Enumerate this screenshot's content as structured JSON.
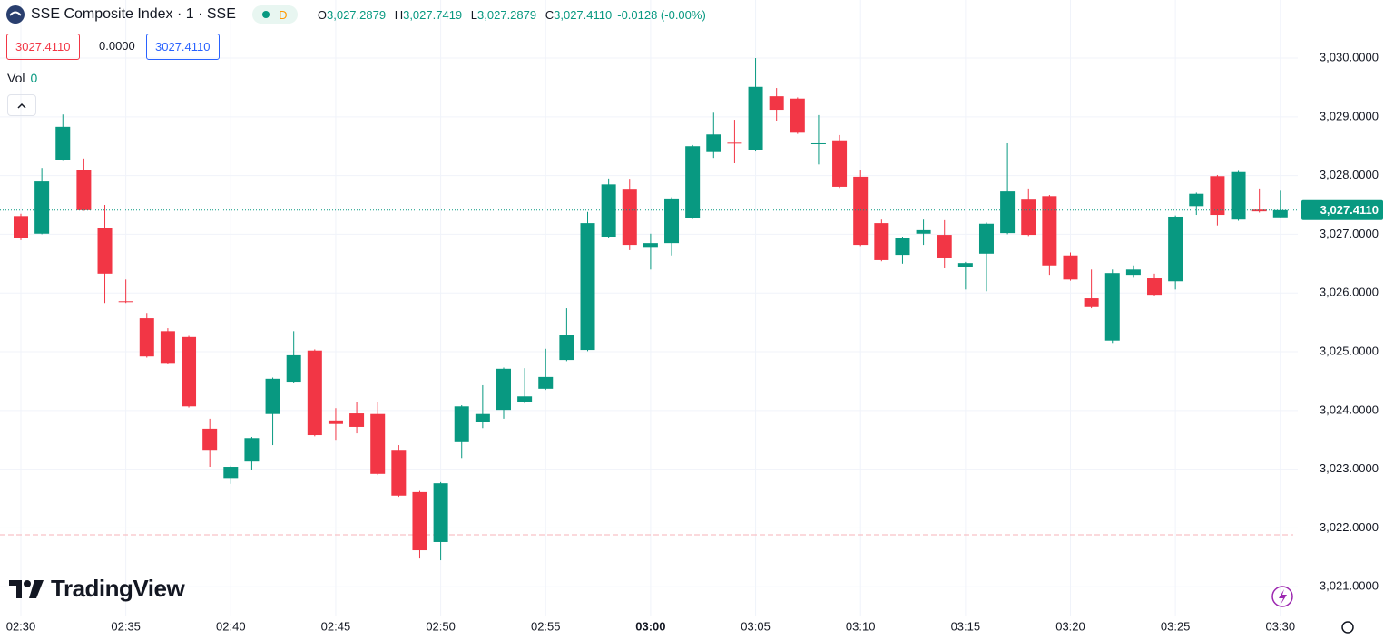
{
  "header": {
    "symbol": "SSE Composite Index · 1 · SSE",
    "badge": "D",
    "ohlc": [
      {
        "label": "O",
        "value": "3,027.2879"
      },
      {
        "label": "H",
        "value": "3,027.7419"
      },
      {
        "label": "L",
        "value": "3,027.2879"
      },
      {
        "label": "C",
        "value": "3,027.4110"
      }
    ],
    "change": "-0.0128 (-0.00%)"
  },
  "inputs": [
    "3027.4110",
    "0.0000",
    "3027.4110"
  ],
  "volume": {
    "label": "Vol",
    "value": "0"
  },
  "branding": "TradingView",
  "chart_data": {
    "type": "candlestick",
    "categories": [
      "02:30",
      null,
      null,
      null,
      null,
      "02:35",
      null,
      null,
      null,
      null,
      "02:40",
      null,
      null,
      null,
      null,
      "02:45",
      null,
      null,
      null,
      null,
      "02:50",
      null,
      null,
      null,
      null,
      "02:55",
      null,
      null,
      null,
      null,
      "03:00",
      null,
      null,
      null,
      null,
      "03:05",
      null,
      null,
      null,
      null,
      "03:10",
      null,
      null,
      null,
      null,
      "03:15",
      null,
      null,
      null,
      null,
      "03:20",
      null,
      null,
      null,
      null,
      "03:25",
      null,
      null,
      null,
      null,
      "03:30"
    ],
    "open": [
      3027.31,
      3027.01,
      3028.26,
      3028.1,
      3027.11,
      3025.86,
      3025.57,
      3025.35,
      3025.25,
      3023.69,
      3022.85,
      3023.13,
      3023.94,
      3024.49,
      3025.02,
      3023.83,
      3023.95,
      3023.94,
      3023.33,
      3022.61,
      3021.76,
      3023.46,
      3023.81,
      3024.01,
      3024.14,
      3024.37,
      3024.86,
      3025.03,
      3026.96,
      3027.76,
      3026.77,
      3026.85,
      3027.28,
      3028.4,
      3028.56,
      3028.43,
      3029.35,
      3029.31,
      3028.54,
      3028.6,
      3027.98,
      3027.19,
      3026.65,
      3027.01,
      3026.99,
      3026.45,
      3026.67,
      3027.02,
      3027.59,
      3027.65,
      3026.64,
      3025.91,
      3025.19,
      3026.31,
      3026.25,
      3026.2,
      3027.48,
      3027.99,
      3027.25,
      3027.42,
      3027.2879
    ],
    "high": [
      3027.35,
      3028.13,
      3029.04,
      3028.29,
      3027.5,
      3026.23,
      3025.66,
      3025.4,
      3025.27,
      3023.86,
      3023.06,
      3023.55,
      3024.56,
      3025.35,
      3025.04,
      3024.04,
      3024.15,
      3024.14,
      3023.41,
      3022.63,
      3022.78,
      3024.09,
      3024.43,
      3024.73,
      3024.72,
      3025.05,
      3025.74,
      3027.38,
      3027.95,
      3027.93,
      3027.01,
      3027.63,
      3028.52,
      3029.07,
      3028.95,
      3030.0,
      3029.49,
      3029.33,
      3029.03,
      3028.69,
      3028.09,
      3027.25,
      3026.96,
      3027.25,
      3027.24,
      3026.53,
      3027.2,
      3028.55,
      3027.78,
      3027.67,
      3026.69,
      3026.4,
      3026.4,
      3026.47,
      3026.33,
      3027.32,
      3027.71,
      3028.01,
      3028.08,
      3027.78,
      3027.7419
    ],
    "low": [
      3026.9,
      3027.0,
      3028.25,
      3027.4,
      3025.83,
      3025.83,
      3024.9,
      3024.8,
      3024.05,
      3023.04,
      3022.75,
      3022.98,
      3023.41,
      3024.47,
      3023.56,
      3023.5,
      3023.61,
      3022.9,
      3022.53,
      3021.48,
      3021.45,
      3023.19,
      3023.7,
      3023.86,
      3024.12,
      3024.35,
      3024.84,
      3025.01,
      3026.94,
      3026.73,
      3026.4,
      3026.64,
      3027.26,
      3028.3,
      3028.21,
      3028.41,
      3028.92,
      3028.71,
      3028.19,
      3027.79,
      3026.8,
      3026.54,
      3026.5,
      3026.82,
      3026.42,
      3026.06,
      3026.03,
      3027.0,
      3026.97,
      3026.31,
      3026.21,
      3025.74,
      3025.15,
      3026.26,
      3025.95,
      3026.06,
      3027.33,
      3027.15,
      3027.23,
      3027.37,
      3027.2879
    ],
    "close": [
      3026.93,
      3027.9,
      3028.83,
      3027.41,
      3026.33,
      3025.85,
      3024.92,
      3024.81,
      3024.07,
      3023.33,
      3023.04,
      3023.53,
      3024.54,
      3024.94,
      3023.58,
      3023.77,
      3023.72,
      3022.92,
      3022.55,
      3021.62,
      3022.76,
      3024.07,
      3023.94,
      3024.71,
      3024.24,
      3024.57,
      3025.29,
      3027.19,
      3027.85,
      3026.82,
      3026.85,
      3027.61,
      3028.5,
      3028.7,
      3028.55,
      3029.51,
      3029.12,
      3028.73,
      3028.55,
      3027.81,
      3026.82,
      3026.56,
      3026.94,
      3027.07,
      3026.59,
      3026.51,
      3027.18,
      3027.73,
      3026.99,
      3026.47,
      3026.23,
      3025.76,
      3026.34,
      3026.4,
      3025.97,
      3027.3,
      3027.69,
      3027.33,
      3028.06,
      3027.39,
      3027.411
    ],
    "up_color": "#089981",
    "down_color": "#f23645",
    "ylim": [
      3020.494,
      3030.988
    ],
    "yticks": [
      {
        "value": 3021,
        "label": "3,021.0000"
      },
      {
        "value": 3022,
        "label": "3,022.0000"
      },
      {
        "value": 3023,
        "label": "3,023.0000"
      },
      {
        "value": 3024,
        "label": "3,024.0000"
      },
      {
        "value": 3025,
        "label": "3,025.0000"
      },
      {
        "value": 3026,
        "label": "3,026.0000"
      },
      {
        "value": 3027,
        "label": "3,027.0000"
      },
      {
        "value": 3028,
        "label": "3,028.0000"
      },
      {
        "value": 3029,
        "label": "3,029.0000"
      },
      {
        "value": 3030,
        "label": "3,030.0000"
      }
    ],
    "last_price": {
      "value": 3027.411,
      "label": "3,027.4110"
    },
    "grid": true
  }
}
